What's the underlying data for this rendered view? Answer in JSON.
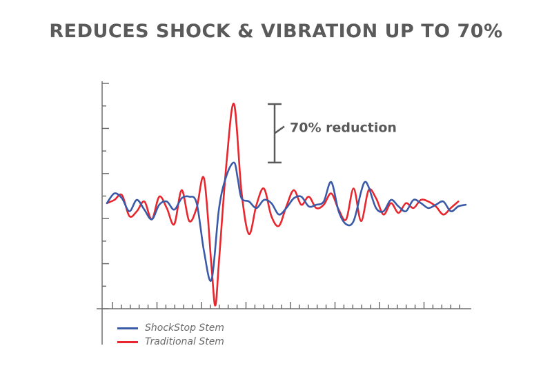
{
  "chart_data": {
    "type": "line",
    "title": "REDUCES SHOCK & VIBRATION UP TO 70%",
    "xlabel": "",
    "ylabel": "",
    "ylim": [
      -6,
      8
    ],
    "xlim": [
      0,
      48
    ],
    "grid": false,
    "legend_position": "bottom-left",
    "annotation": {
      "text": "70% reduction",
      "from": 3.0,
      "to": 6.6
    },
    "series": [
      {
        "name": "ShockStop Stem",
        "color": "#3a5aa8",
        "x": [
          0,
          1,
          2,
          3,
          4,
          5,
          6,
          7,
          8,
          9,
          10,
          11,
          12,
          13,
          14,
          15,
          16,
          17,
          17.5,
          18,
          19,
          20,
          21,
          22,
          23,
          24,
          25,
          26,
          27,
          28,
          29,
          30,
          31,
          32,
          33,
          34,
          34.5,
          35,
          36,
          37,
          38,
          39,
          40,
          41,
          42,
          43,
          44,
          45,
          46,
          47,
          48
        ],
        "values": [
          0.5,
          1.1,
          0.8,
          0.0,
          0.7,
          0.1,
          -0.5,
          0.4,
          0.6,
          0.1,
          0.8,
          0.9,
          0.5,
          -2.5,
          -4.2,
          0.2,
          2.2,
          3.0,
          2.0,
          0.8,
          0.6,
          0.2,
          0.7,
          0.5,
          -0.2,
          0.2,
          0.8,
          0.9,
          0.3,
          0.4,
          0.6,
          1.8,
          0.0,
          -0.8,
          -0.6,
          1.2,
          1.8,
          1.5,
          0.2,
          0.0,
          0.7,
          0.3,
          0.0,
          0.7,
          0.5,
          0.2,
          0.4,
          0.6,
          0.0,
          0.3,
          0.4
        ]
      },
      {
        "name": "Traditional Stem",
        "color": "#e8262d",
        "x": [
          0,
          1,
          2,
          3,
          4,
          5,
          6,
          7,
          8,
          9,
          10,
          11,
          12,
          13,
          14,
          14.5,
          15,
          16,
          17,
          18,
          19,
          20,
          21,
          22,
          23,
          24,
          25,
          26,
          27,
          28,
          29,
          30,
          31,
          32,
          33,
          34,
          35,
          36,
          37,
          38,
          39,
          40,
          41,
          42,
          43,
          44,
          45,
          46,
          47
        ],
        "values": [
          0.5,
          0.7,
          1.0,
          -0.3,
          0.0,
          0.6,
          -0.5,
          0.9,
          0.2,
          -0.8,
          1.3,
          -0.6,
          0.2,
          2.0,
          -3.5,
          -5.8,
          -3.0,
          3.0,
          6.6,
          1.2,
          -1.4,
          0.4,
          1.4,
          -0.3,
          -0.9,
          0.3,
          1.3,
          0.4,
          0.9,
          0.2,
          0.4,
          1.1,
          0.1,
          -0.5,
          1.4,
          -0.6,
          1.3,
          0.8,
          -0.2,
          0.5,
          -0.1,
          0.5,
          0.2,
          0.7,
          0.6,
          0.3,
          -0.2,
          0.2,
          0.6
        ]
      }
    ]
  }
}
